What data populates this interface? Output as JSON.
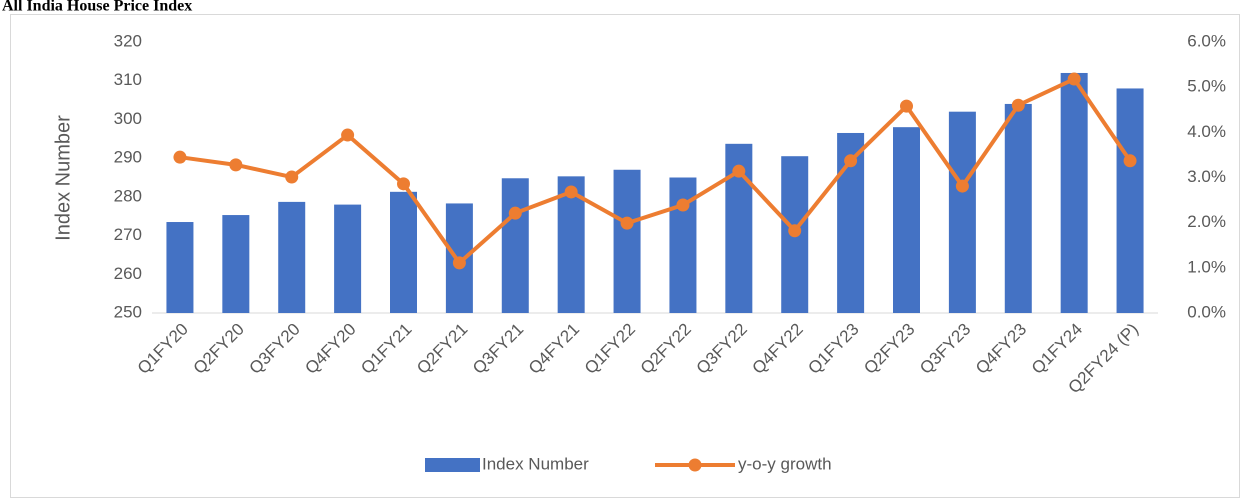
{
  "chart_data": {
    "type": "bar",
    "title": "All India House Price Index",
    "y_label": "Index Number",
    "categories": [
      "Q1FY20",
      "Q2FY20",
      "Q3FY20",
      "Q4FY20",
      "Q1FY21",
      "Q2FY21",
      "Q3FY21",
      "Q4FY21",
      "Q1FY22",
      "Q2FY22",
      "Q3FY22",
      "Q4FY22",
      "Q1FY23",
      "Q2FY23",
      "Q3FY23",
      "Q4FY23",
      "Q1FY24",
      "Q2FY24 (P)"
    ],
    "series": [
      {
        "name": "Index Number",
        "type": "bar",
        "color": "#4472c4",
        "values": [
          273.5,
          275.3,
          278.7,
          278.0,
          281.3,
          278.3,
          284.8,
          285.3,
          287.0,
          285.0,
          293.7,
          290.5,
          296.5,
          298.0,
          302.0,
          304.0,
          312.0,
          308.0
        ]
      },
      {
        "name": "y-o-y growth",
        "type": "line",
        "axis": "y2",
        "color": "#ed7d31",
        "values": [
          3.45,
          3.28,
          3.01,
          3.94,
          2.86,
          1.11,
          2.21,
          2.68,
          1.99,
          2.39,
          3.14,
          1.82,
          3.37,
          4.58,
          2.81,
          4.6,
          5.18,
          3.37
        ]
      }
    ],
    "ylim": [
      250,
      320
    ],
    "yticks": [
      250,
      260,
      270,
      280,
      290,
      300,
      310,
      320
    ],
    "y2lim": [
      0,
      6
    ],
    "y2ticks": [
      {
        "value": 0,
        "label": "0.0%"
      },
      {
        "value": 1,
        "label": "1.0%"
      },
      {
        "value": 2,
        "label": "2.0%"
      },
      {
        "value": 3,
        "label": "3.0%"
      },
      {
        "value": 4,
        "label": "4.0%"
      },
      {
        "value": 5,
        "label": "5.0%"
      },
      {
        "value": 6,
        "label": "6.0%"
      }
    ],
    "grid": false,
    "legend": "bottom"
  }
}
